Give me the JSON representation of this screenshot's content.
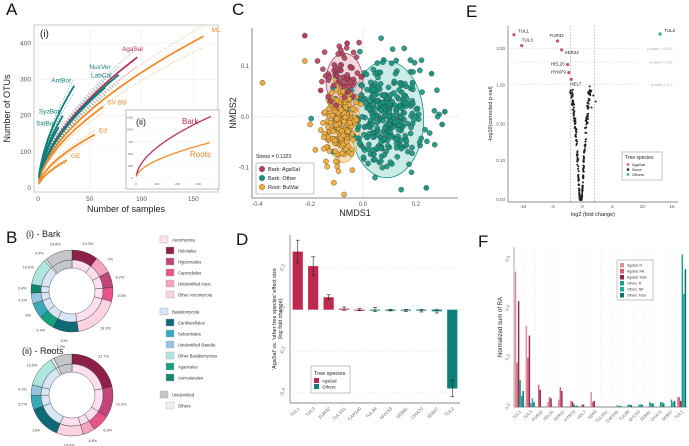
{
  "panels": {
    "A": "A",
    "B": "B",
    "C": "C",
    "D": "D",
    "E": "E",
    "F": "F"
  },
  "chart_data": [
    {
      "id": "A",
      "type": "line",
      "subtitle": "(i)",
      "xlabel": "Number of samples",
      "ylabel": "Number of OTUs",
      "xlim": [
        0,
        170
      ],
      "ylim": [
        0,
        440
      ],
      "xticks": [
        0,
        50,
        100,
        150
      ],
      "yticks": [
        0,
        100,
        200,
        300,
        400
      ],
      "grid": true,
      "series": [
        {
          "name": "ML",
          "group": "Roots",
          "color": "#f08c2a",
          "n": 160,
          "end": 420
        },
        {
          "name": "AgaSal",
          "group": "Bark-AgaSal",
          "color": "#b5325f",
          "n": 96,
          "end": 362
        },
        {
          "name": "NuxVer",
          "group": "Bark-Other",
          "color": "#0f7f7a",
          "n": 78,
          "end": 313
        },
        {
          "name": "AntBor",
          "group": "Bark-Other",
          "color": "#0f7f7a",
          "n": 35,
          "end": 283
        },
        {
          "name": "LabCal",
          "group": "Bark-Other",
          "color": "#0f7f7a",
          "n": 65,
          "end": 278
        },
        {
          "name": "SV BB",
          "group": "Roots",
          "color": "#f08c2a",
          "n": 63,
          "end": 225
        },
        {
          "name": "SyzBor",
          "group": "Bark-Other",
          "color": "#0f7f7a",
          "n": 24,
          "end": 200
        },
        {
          "name": "SidBor",
          "group": "Bark-Other",
          "color": "#0f7f7a",
          "n": 20,
          "end": 168
        },
        {
          "name": "Ed",
          "group": "Roots",
          "color": "#f08c2a",
          "n": 55,
          "end": 148
        },
        {
          "name": "GE",
          "group": "Roots",
          "color": "#f08c2a",
          "n": 28,
          "end": 77
        }
      ],
      "inset": {
        "subtitle": "(ii)",
        "xlim": [
          0,
          370
        ],
        "ylim": [
          0,
          1300
        ],
        "xticks": [
          0,
          100,
          200,
          300
        ],
        "yticks": [
          0,
          250,
          500,
          750,
          1000,
          1250
        ],
        "series": [
          {
            "name": "Bark",
            "color": "#b5325f",
            "n": 360,
            "end": 1270
          },
          {
            "name": "Roots",
            "color": "#f08c2a",
            "n": 355,
            "end": 730
          }
        ]
      }
    },
    {
      "id": "B",
      "type": "pie",
      "donuts": [
        {
          "title": "(i) - Bark",
          "slices": [
            {
              "label": "Helotiales",
              "value": 10.3,
              "text": "10.3%",
              "color": "#8c2049",
              "phylum": "Asco"
            },
            {
              "label": "Unidentified Asco.",
              "value": 7.0,
              "text": "7%",
              "color": "#f4a3c0",
              "phylum": "Asco"
            },
            {
              "label": "Hypocreales",
              "value": 6.2,
              "text": "6.2%",
              "color": "#c1457a",
              "phylum": "Asco"
            },
            {
              "label": "Capnodiales",
              "value": 5.5,
              "text": "5.5%",
              "color": "#e8538a",
              "phylum": "Asco"
            },
            {
              "label": "Other Ascomycota",
              "value": 18.3,
              "text": "18.3%",
              "color": "#fbd3e0",
              "phylum": "Asco"
            },
            {
              "label": "Cantharellales",
              "value": 10.0,
              "text": "10%",
              "color": "#0e6b75",
              "phylum": "Basidio"
            },
            {
              "label": "Agaricales",
              "value": 6.4,
              "text": "6.4%",
              "color": "#17a07e",
              "phylum": "Basidio"
            },
            {
              "label": "Sebacinales",
              "value": 6.0,
              "text": "6%",
              "color": "#3aa9bb",
              "phylum": "Basidio"
            },
            {
              "label": "Unidentified Basidio.",
              "value": 4.2,
              "text": "4.2%",
              "color": "#94c6de",
              "phylum": "Basidio"
            },
            {
              "label": "Auriculariales",
              "value": 3.4,
              "text": "3.4%",
              "color": "#11876f",
              "phylum": "Basidio"
            },
            {
              "label": "Other Basidiomycota",
              "value": 10.6,
              "text": "10.6%",
              "color": "#aee6de",
              "phylum": "Basidio"
            },
            {
              "label": "Others",
              "value": 0.9,
              "text": "0.9%",
              "color": "#e6e9ee",
              "phylum": "Other"
            },
            {
              "label": "Unidentified",
              "value": 10.8,
              "text": "10.8%",
              "color": "#c4c6c9",
              "phylum": "Unid"
            }
          ]
        },
        {
          "title": "(ii) - Roots",
          "slices": [
            {
              "label": "Helotiales",
              "value": 21.7,
              "text": "21.7%",
              "color": "#8c2049",
              "phylum": "Asco"
            },
            {
              "label": "Hypocreales",
              "value": 12.2,
              "text": "12.2%",
              "color": "#c1457a",
              "phylum": "Asco"
            },
            {
              "label": "Capnodiales",
              "value": 6.9,
              "text": "6.9%",
              "color": "#e8538a",
              "phylum": "Asco"
            },
            {
              "label": "Unidentified Asco.",
              "value": 4.8,
              "text": "4.8%",
              "color": "#f4a3c0",
              "phylum": "Asco"
            },
            {
              "label": "Other Ascomycota",
              "value": 10.6,
              "text": "10.6%",
              "color": "#fbd3e0",
              "phylum": "Asco"
            },
            {
              "label": "Cantharellales",
              "value": 13.0,
              "text": "13%",
              "color": "#0e6b75",
              "phylum": "Basidio"
            },
            {
              "label": "Sebacinales",
              "value": 5.7,
              "text": "5.7%",
              "color": "#3aa9bb",
              "phylum": "Basidio"
            },
            {
              "label": "Unidentified Basidio.",
              "value": 4.1,
              "text": "4.1%",
              "color": "#94c6de",
              "phylum": "Basidio"
            },
            {
              "label": "Other Basidiomycota",
              "value": 12.5,
              "text": "12.5%",
              "color": "#aee6de",
              "phylum": "Basidio"
            },
            {
              "label": "Others",
              "value": 1.2,
              "text": "1.2%",
              "color": "#e6e9ee",
              "phylum": "Other"
            },
            {
              "label": "Unidentified",
              "value": 7.3,
              "text": "7.3%",
              "color": "#c4c6c9",
              "phylum": "Unid"
            }
          ]
        }
      ],
      "inner_colors": {
        "Asco": "#fde0f0",
        "Basidio": "#d6e6f5",
        "Other": "#eef0f3",
        "Unid": "#c4c6c9"
      },
      "legend": [
        {
          "label": "Ascomycota",
          "color": "#fde0f0",
          "header": true
        },
        {
          "label": "Helotiales",
          "color": "#8c2049"
        },
        {
          "label": "Hypocreales",
          "color": "#c1457a"
        },
        {
          "label": "Capnodiales",
          "color": "#e8538a"
        },
        {
          "label": "Unidentified Asco.",
          "color": "#f4a3c0"
        },
        {
          "label": "Other Ascomycota",
          "color": "#fbd3e0"
        },
        {
          "label": "Basidiomycota",
          "color": "#d6e6f5",
          "header": true
        },
        {
          "label": "Cantharellales",
          "color": "#0e6b75"
        },
        {
          "label": "Sebacinales",
          "color": "#3aa9bb"
        },
        {
          "label": "Unidentified Basidio.",
          "color": "#94c6de"
        },
        {
          "label": "Other Basidiomycota",
          "color": "#aee6de"
        },
        {
          "label": "Agaricales",
          "color": "#17a07e"
        },
        {
          "label": "Auriculariales",
          "color": "#11876f"
        },
        {
          "label": "Unidentified",
          "color": "#c4c6c9",
          "header": true
        },
        {
          "label": "Others",
          "color": "#eef0f3"
        }
      ]
    },
    {
      "id": "C",
      "type": "scatter",
      "xlabel": "NMDS1",
      "ylabel": "NMDS2",
      "xlim": [
        -0.42,
        0.36
      ],
      "ylim": [
        -0.16,
        0.175
      ],
      "xticks": [
        -0.4,
        -0.2,
        0.0,
        0.2
      ],
      "xtick_labels": [
        "-0.4",
        "-0.2",
        "0.0",
        "0.2"
      ],
      "yticks": [
        -0.1,
        0.0,
        0.1
      ],
      "ytick_labels": [
        "-0.1",
        "0.0",
        "0.1"
      ],
      "annotation": "Stress = 0.1323",
      "legend": [
        {
          "label": "Bark: AgaSal",
          "color": "#b3405e"
        },
        {
          "label": "Bark: Other",
          "color": "#14957f"
        },
        {
          "label": "Root: BulVar",
          "color": "#f2ad3a"
        }
      ],
      "groups": [
        {
          "name": "Bark: AgaSal",
          "color": "#b3405e",
          "ellipse_fill": "#f2b7c4",
          "center": [
            -0.075,
            0.085
          ],
          "spread": [
            0.045,
            0.03
          ],
          "n": 60,
          "ellipse": {
            "cx": -0.07,
            "cy": 0.07,
            "rx": 0.07,
            "ry": 0.055
          }
        },
        {
          "name": "Bark: Other",
          "color": "#14957f",
          "ellipse_fill": "#9fdcd4",
          "center": [
            0.09,
            0.0
          ],
          "spread": [
            0.085,
            0.06
          ],
          "n": 330,
          "ellipse": {
            "cx": 0.09,
            "cy": -0.005,
            "rx": 0.14,
            "ry": 0.115
          }
        },
        {
          "name": "Root: BulVar",
          "color": "#f2ad3a",
          "ellipse_fill": "#f7c77a",
          "center": [
            -0.085,
            -0.01
          ],
          "spread": [
            0.035,
            0.045
          ],
          "n": 230,
          "ellipse": {
            "cx": -0.075,
            "cy": -0.015,
            "rx": 0.065,
            "ry": 0.075
          }
        }
      ],
      "outliers": [
        {
          "x": -0.22,
          "y": 0.16,
          "g": 0
        },
        {
          "x": -0.06,
          "y": 0.145,
          "g": 0
        },
        {
          "x": -0.16,
          "y": 0.052,
          "g": 0
        },
        {
          "x": -0.38,
          "y": 0.067,
          "g": 2
        },
        {
          "x": -0.22,
          "y": 0.11,
          "g": 2
        },
        {
          "x": -0.2,
          "y": -0.015,
          "g": 2
        },
        {
          "x": -0.18,
          "y": -0.065,
          "g": 2
        },
        {
          "x": -0.14,
          "y": -0.088,
          "g": 2
        },
        {
          "x": -0.11,
          "y": -0.13,
          "g": 2
        },
        {
          "x": -0.04,
          "y": -0.105,
          "g": 2
        },
        {
          "x": 0.31,
          "y": 0.01,
          "g": 1
        },
        {
          "x": 0.3,
          "y": -0.015,
          "g": 1
        },
        {
          "x": 0.24,
          "y": -0.14,
          "g": 1
        },
        {
          "x": 0.26,
          "y": 0.085,
          "g": 1
        }
      ]
    },
    {
      "id": "D",
      "type": "bar",
      "ylabel": "'AgaSal' vs. 'other tree species' effect size (log fold change)",
      "ylabel_lines": [
        "'AgaSal' vs. 'other tree species' effect size",
        "(log fold change)"
      ],
      "ylim": [
        -0.45,
        0.36
      ],
      "yticks": [
        -0.4,
        -0.2,
        0.0,
        0.2
      ],
      "ytick_labels": [
        "-0.4",
        "-0.2",
        "0.0",
        "0.2"
      ],
      "categories": [
        "TUL1",
        "TUL3",
        "FUR32",
        "TULS51",
        "CAP240",
        "TUL89",
        "MYC53",
        "SEB81",
        "CHA70",
        "SEB47",
        "TUL2"
      ],
      "values": [
        0.28,
        0.21,
        0.06,
        0.005,
        0.0,
        0.0,
        -0.002,
        -0.004,
        -0.005,
        -0.008,
        -0.38
      ],
      "errors": [
        0.055,
        0.045,
        0.012,
        0.008,
        0.005,
        0.01,
        0.004,
        0.005,
        0.006,
        0.008,
        0.04
      ],
      "groups": [
        "AgaSal",
        "AgaSal",
        "AgaSal",
        "AgaSal",
        "AgaSal",
        "Others",
        "Others",
        "Others",
        "Others",
        "Others",
        "Others"
      ],
      "legend_title": "Tree species",
      "legend": [
        {
          "label": "AgaSal",
          "color": "#c0294f"
        },
        {
          "label": "Others",
          "color": "#0f7f7a"
        }
      ]
    },
    {
      "id": "E",
      "type": "scatter",
      "xlabel": "log2 (fold change)",
      "ylabel": "-log10(corrected p-val)",
      "xlim": [
        -12.5,
        16
      ],
      "xticks": [
        -10,
        -5,
        0,
        5,
        10,
        15
      ],
      "yticks": [
        0.03,
        0.1,
        0.3,
        1.0,
        3.0
      ],
      "ytick_labels": [
        "0.03",
        "0.10",
        "0.30",
        "1.00",
        "3.00"
      ],
      "ylim_log": [
        0.028,
        6
      ],
      "vlines": [
        -2,
        2
      ],
      "hlines": [
        {
          "y": 3.0,
          "label": "p-value = 0.001"
        },
        {
          "y": 2.0,
          "label": "p-value = 0.01"
        },
        {
          "y": 1.0,
          "label": "p-value = 0.1"
        }
      ],
      "legend_title": "Tree species",
      "legend": [
        {
          "label": "AgaSal",
          "color": "#c7566e"
        },
        {
          "label": "None",
          "color": "#222222"
        },
        {
          "label": "Others",
          "color": "#2aa6a0"
        }
      ],
      "labeled_points": [
        {
          "label": "TUL1",
          "x": -11.5,
          "y": 4.6,
          "group": "AgaSal"
        },
        {
          "label": "TUL3",
          "x": -10.2,
          "y": 3.3,
          "group": "AgaSal"
        },
        {
          "label": "FUR32",
          "x": -4.2,
          "y": 3.8,
          "group": "AgaSal"
        },
        {
          "label": "SER22",
          "x": -3.5,
          "y": 2.9,
          "group": "AgaSal"
        },
        {
          "label": "HEL20",
          "x": -2.5,
          "y": 1.85,
          "group": "AgaSal"
        },
        {
          "label": "HYM79",
          "x": -2.3,
          "y": 1.45,
          "group": "AgaSal"
        },
        {
          "label": "HELT",
          "x": -1.9,
          "y": 1.18,
          "group": "AgaSal"
        },
        {
          "label": "TUL2",
          "x": 13.0,
          "y": 4.7,
          "group": "Others"
        }
      ]
    },
    {
      "id": "F",
      "type": "bar",
      "ylabel": "Normalized sum of RA",
      "ylim": [
        0,
        0.65
      ],
      "yticks": [
        0.0,
        0.2,
        0.4,
        0.6
      ],
      "ytick_labels": [
        "0.0",
        "0.2",
        "0.4",
        "0.6"
      ],
      "categories": [
        "TUL1",
        "TUL3",
        "FUR32",
        "HEL20",
        "SER22",
        "HYM79",
        "HEL7",
        "SER4",
        "TULS51",
        "CAP240",
        "TUL89",
        "MYC53",
        "SEB81",
        "CHA70",
        "SEB47",
        "TUL2"
      ],
      "series": [
        {
          "name": "AgaSal: R",
          "color": "#e58a98",
          "values": [
            0.55,
            0.33,
            0.0,
            0.02,
            0.03,
            0.005,
            0.0,
            0.06,
            0.0,
            0.0,
            0.0,
            0.0,
            0.0,
            0.0,
            0.0,
            0.04
          ]
        },
        {
          "name": "AgaSal: NR",
          "color": "#db5a72",
          "values": [
            0.18,
            0.2,
            0.09,
            0.04,
            0.08,
            0.025,
            0.01,
            0.02,
            0.0,
            0.0,
            0.0,
            0.0,
            0.0,
            0.0,
            0.0,
            0.04
          ]
        },
        {
          "name": "AgaSal: Total",
          "color": "#8e2a50",
          "values": [
            0.43,
            0.29,
            0.07,
            0.035,
            0.065,
            0.02,
            0.01,
            0.025,
            0.0,
            0.0,
            0.0,
            0.0,
            0.0,
            0.0,
            0.0,
            0.025
          ]
        },
        {
          "name": "Others: R",
          "color": "#1aa08a",
          "values": [
            0.11,
            0.015,
            0.0,
            0.0,
            0.0,
            0.01,
            0.0,
            0.0,
            0.0,
            0.007,
            0.01,
            0.01,
            0.02,
            0.02,
            0.03,
            0.62
          ]
        },
        {
          "name": "Others: NR",
          "color": "#20a7a0",
          "values": [
            0.045,
            0.035,
            0.0,
            0.0,
            0.0,
            0.005,
            0.0,
            0.0,
            0.0,
            0.005,
            0.01,
            0.01,
            0.015,
            0.02,
            0.02,
            0.46
          ]
        },
        {
          "name": "Others: Total",
          "color": "#146e78",
          "values": [
            0.065,
            0.02,
            0.0,
            0.0,
            0.0,
            0.005,
            0.0,
            0.0,
            0.0,
            0.004,
            0.008,
            0.01,
            0.015,
            0.015,
            0.025,
            0.56
          ]
        }
      ]
    }
  ]
}
